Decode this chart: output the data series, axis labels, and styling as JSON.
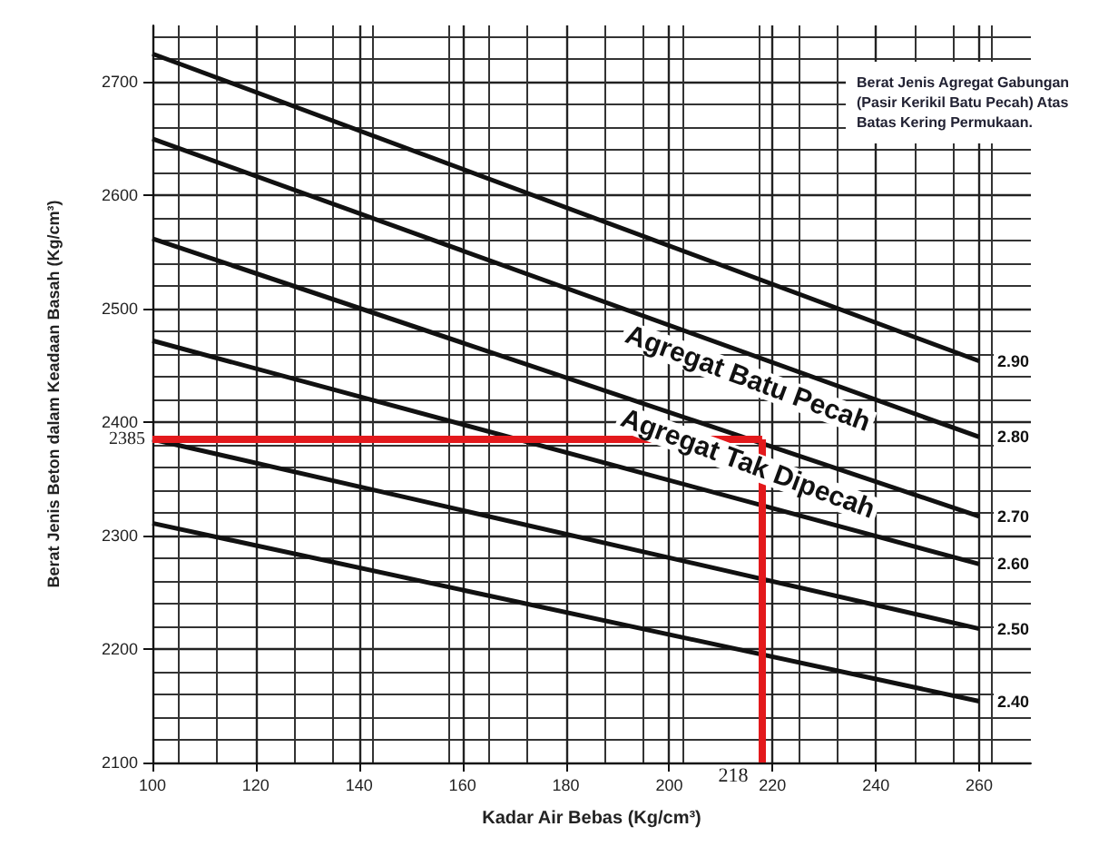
{
  "chart_data": {
    "type": "line",
    "xlabel": "Kadar Air Bebas (Kg/cm³)",
    "ylabel": "Berat Jenis Beton dalam Keadaan Basah (Kg/cm³)",
    "x": [
      100,
      260
    ],
    "series": [
      {
        "name": "2.90",
        "color": "#111111",
        "values": [
          2725,
          2454
        ]
      },
      {
        "name": "2.80",
        "color": "#111111",
        "values": [
          2650,
          2387
        ]
      },
      {
        "name": "2.70",
        "color": "#111111",
        "values": [
          2562,
          2317
        ]
      },
      {
        "name": "2.60",
        "color": "#111111",
        "values": [
          2472,
          2275
        ]
      },
      {
        "name": "2.50",
        "color": "#111111",
        "values": [
          2385,
          2218
        ]
      },
      {
        "name": "2.40",
        "color": "#111111",
        "values": [
          2311,
          2154
        ]
      }
    ],
    "xlim": [
      100,
      270
    ],
    "xticks": [
      100,
      120,
      140,
      160,
      180,
      200,
      220,
      240,
      260
    ],
    "ylim": [
      2100,
      2750
    ],
    "yticks": [
      2100,
      2200,
      2300,
      2400,
      2500,
      2600,
      2700
    ],
    "grid": true,
    "marker": "none",
    "line_style": "solid",
    "legend": false,
    "ref_lines": [
      {
        "axis": "y",
        "value": 2385,
        "label": "2385",
        "color": "#e3191c"
      },
      {
        "axis": "x",
        "value": 218,
        "label": "218",
        "color": "#e3191c"
      }
    ],
    "annotations": [
      "Berat Jenis Agregat Gabungan (Pasir Kerikil Batu Pecah) Atas Batas Kering Permukaan.",
      "Agregat Batu Pecah",
      "Agregat Tak Dipecah"
    ]
  }
}
